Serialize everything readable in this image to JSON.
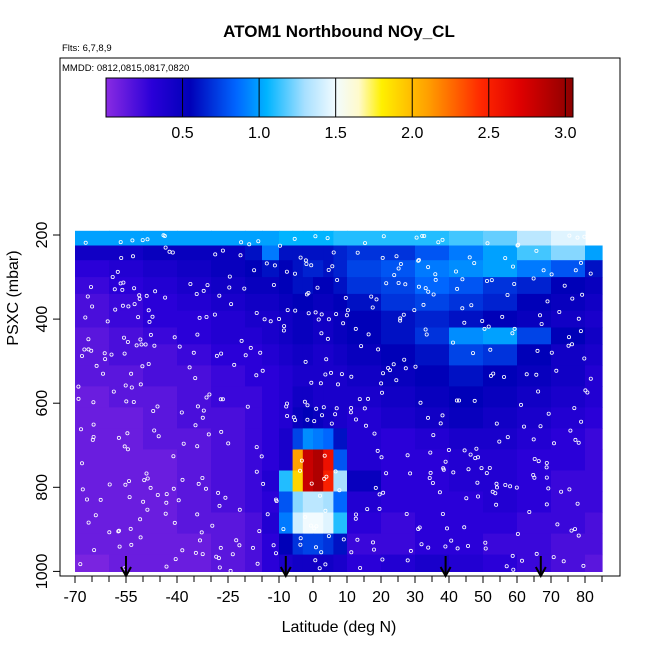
{
  "chart_data": {
    "type": "heatmap",
    "title": "ATOM1 Northbound NOy_CL",
    "annotations": [
      "Flts: 6,7,8,9",
      "MMDD: 0812,0815,0817,0820"
    ],
    "xlabel": "Latitude (deg N)",
    "ylabel": "PSXC (mbar)",
    "xlim": [
      -70,
      85
    ],
    "ylim": [
      1000,
      0
    ],
    "x_ticks": [
      -70,
      -55,
      -40,
      -25,
      -10,
      0,
      10,
      20,
      30,
      40,
      50,
      60,
      70,
      80
    ],
    "x_minor_ticks": [
      -65,
      -60,
      -50,
      -45,
      -35,
      -30,
      -20,
      -15,
      -5,
      5,
      15,
      25,
      35,
      45,
      55,
      65,
      75,
      85
    ],
    "y_ticks": [
      200,
      400,
      600,
      800,
      1000
    ],
    "colorbar": {
      "ticks": [
        0.5,
        1.0,
        1.5,
        2.0,
        2.5,
        3.0
      ],
      "tick_labels": [
        "0.5",
        "1.0",
        "1.5",
        "2.0",
        "2.5",
        "3.0"
      ],
      "range": [
        0,
        3.05
      ],
      "stops": [
        {
          "v": 0.0,
          "c": "#8a2be2"
        },
        {
          "v": 0.3,
          "c": "#2a00d8"
        },
        {
          "v": 0.55,
          "c": "#0000b8"
        },
        {
          "v": 0.85,
          "c": "#0066ff"
        },
        {
          "v": 1.05,
          "c": "#00b4ff"
        },
        {
          "v": 1.3,
          "c": "#a8e0ff"
        },
        {
          "v": 1.5,
          "c": "#f2fbff"
        },
        {
          "v": 1.65,
          "c": "#fffacc"
        },
        {
          "v": 1.8,
          "c": "#fff000"
        },
        {
          "v": 2.1,
          "c": "#ffa000"
        },
        {
          "v": 2.45,
          "c": "#ff2800"
        },
        {
          "v": 2.7,
          "c": "#e00000"
        },
        {
          "v": 3.05,
          "c": "#8b0000"
        }
      ]
    },
    "flight_markers_lat": [
      -55,
      -8,
      39,
      67
    ],
    "pressure_levels": [
      190,
      225,
      260,
      300,
      340,
      380,
      420,
      460,
      510,
      560,
      610,
      660,
      710,
      760,
      810,
      860,
      910,
      960,
      1000
    ],
    "lat_edges": [
      -70,
      -60,
      -50,
      -40,
      -30,
      -20,
      -15,
      -10,
      -6,
      -3,
      0,
      3,
      6,
      10,
      20,
      30,
      40,
      50,
      60,
      70,
      80,
      85
    ],
    "grid": [
      [
        1.0,
        1.0,
        1.0,
        1.0,
        1.0,
        1.0,
        1.0,
        1.05,
        1.05,
        1.05,
        1.05,
        1.05,
        1.1,
        1.1,
        1.1,
        1.1,
        1.15,
        1.2,
        1.35,
        1.45,
        1.35
      ],
      [
        0.45,
        0.45,
        0.5,
        0.5,
        0.5,
        0.6,
        0.9,
        0.6,
        0.6,
        0.6,
        0.6,
        0.6,
        0.65,
        0.7,
        0.7,
        0.8,
        0.9,
        1.0,
        1.15,
        1.25,
        1.0
      ],
      [
        0.3,
        0.35,
        0.4,
        0.45,
        0.5,
        0.55,
        0.6,
        0.55,
        0.6,
        0.65,
        0.65,
        0.6,
        0.65,
        0.75,
        0.8,
        0.9,
        0.95,
        1.0,
        0.9,
        0.8,
        0.6
      ],
      [
        0.25,
        0.3,
        0.35,
        0.4,
        0.45,
        0.5,
        0.5,
        0.55,
        0.6,
        0.6,
        0.55,
        0.55,
        0.6,
        0.7,
        0.75,
        0.85,
        0.8,
        0.7,
        0.65,
        0.55,
        0.5
      ],
      [
        0.2,
        0.25,
        0.3,
        0.35,
        0.4,
        0.45,
        0.45,
        0.5,
        0.55,
        0.55,
        0.5,
        0.5,
        0.55,
        0.6,
        0.7,
        0.75,
        0.7,
        0.65,
        0.55,
        0.5,
        0.45
      ],
      [
        0.2,
        0.25,
        0.3,
        0.3,
        0.35,
        0.4,
        0.4,
        0.45,
        0.5,
        0.5,
        0.45,
        0.45,
        0.5,
        0.55,
        0.6,
        0.65,
        0.6,
        0.55,
        0.5,
        0.45,
        0.4
      ],
      [
        0.15,
        0.2,
        0.25,
        0.3,
        0.35,
        0.35,
        0.4,
        0.45,
        0.5,
        0.5,
        0.45,
        0.45,
        0.5,
        0.55,
        0.6,
        0.7,
        0.95,
        1.0,
        0.75,
        0.55,
        0.45
      ],
      [
        0.15,
        0.2,
        0.2,
        0.25,
        0.3,
        0.3,
        0.35,
        0.4,
        0.45,
        0.45,
        0.4,
        0.4,
        0.45,
        0.5,
        0.55,
        0.6,
        0.75,
        0.7,
        0.55,
        0.45,
        0.4
      ],
      [
        0.15,
        0.15,
        0.2,
        0.2,
        0.25,
        0.3,
        0.3,
        0.35,
        0.4,
        0.4,
        0.4,
        0.4,
        0.4,
        0.45,
        0.5,
        0.55,
        0.6,
        0.55,
        0.5,
        0.45,
        0.35
      ],
      [
        0.1,
        0.15,
        0.15,
        0.2,
        0.25,
        0.25,
        0.3,
        0.35,
        0.45,
        0.45,
        0.4,
        0.4,
        0.4,
        0.4,
        0.45,
        0.5,
        0.55,
        0.5,
        0.45,
        0.4,
        0.35
      ],
      [
        0.1,
        0.1,
        0.15,
        0.2,
        0.2,
        0.25,
        0.3,
        0.35,
        0.5,
        0.55,
        0.5,
        0.45,
        0.4,
        0.35,
        0.4,
        0.45,
        0.5,
        0.45,
        0.4,
        0.35,
        0.3
      ],
      [
        0.1,
        0.1,
        0.15,
        0.15,
        0.2,
        0.25,
        0.3,
        0.4,
        0.75,
        0.95,
        0.9,
        0.85,
        0.6,
        0.35,
        0.3,
        0.35,
        0.4,
        0.4,
        0.35,
        0.3,
        0.25
      ],
      [
        0.1,
        0.1,
        0.1,
        0.15,
        0.2,
        0.25,
        0.3,
        0.4,
        2.1,
        2.8,
        2.9,
        2.6,
        0.8,
        0.35,
        0.3,
        0.3,
        0.35,
        0.35,
        0.3,
        0.3,
        0.25
      ],
      [
        0.1,
        0.1,
        0.1,
        0.15,
        0.2,
        0.25,
        0.35,
        1.1,
        1.9,
        2.8,
        2.9,
        2.5,
        1.3,
        0.5,
        0.3,
        0.3,
        0.35,
        0.35,
        0.3,
        0.25,
        0.25
      ],
      [
        0.1,
        0.1,
        0.1,
        0.15,
        0.2,
        0.25,
        0.3,
        0.8,
        1.25,
        1.35,
        1.35,
        1.3,
        0.85,
        0.35,
        0.3,
        0.3,
        0.3,
        0.35,
        0.3,
        0.25,
        0.25
      ],
      [
        0.1,
        0.1,
        0.1,
        0.15,
        0.15,
        0.2,
        0.35,
        0.9,
        1.4,
        1.5,
        1.5,
        1.45,
        1.1,
        0.3,
        0.25,
        0.3,
        0.3,
        0.3,
        0.25,
        0.25,
        0.2
      ],
      [
        0.1,
        0.1,
        0.1,
        0.1,
        0.15,
        0.2,
        0.3,
        0.55,
        0.7,
        0.75,
        0.75,
        0.7,
        0.6,
        0.25,
        0.25,
        0.3,
        0.3,
        0.25,
        0.25,
        0.2,
        0.2
      ],
      [
        0.05,
        0.1,
        0.1,
        0.1,
        0.15,
        0.2,
        0.3,
        0.4,
        0.45,
        0.45,
        0.45,
        0.45,
        0.4,
        0.3,
        0.35,
        0.4,
        0.35,
        0.3,
        0.25,
        0.2,
        0.15
      ]
    ]
  }
}
